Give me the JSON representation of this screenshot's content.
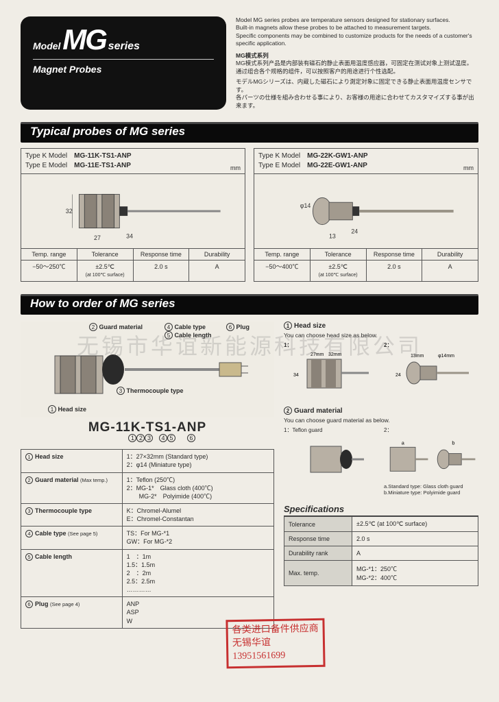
{
  "title": {
    "model": "Model",
    "mg": "MG",
    "series": "series",
    "sub": "Magnet Probes"
  },
  "intro": {
    "en1": "Model MG series probes are temperature sensors designed for stationary surfaces.",
    "en2": "Built-in magnets allow these probes to be attached to measurement targets.",
    "en3": "Specific components may be combined to customize products for the needs of a customer's specific application.",
    "zh_h": "MG模式系列",
    "zh1": "MG模式系列产品是内部装有磁石的静止表面用温度感应器，可固定在测试对象上测试温度。",
    "zh2": "通过组合各个规格的组件，可以按照客户的用途进行个性选配。",
    "jp1": "モデルMGシリーズは、内蔵した磁石により測定対象に固定できる静止表面用温度センサです。",
    "jp2": "各パーツの仕様を組み合わせる事により、お客様の用途に合わせてカスタマイズする事が出来ます。"
  },
  "bar1": "Typical probes of MG series",
  "bar2": "How to order of MG series",
  "probe": [
    {
      "k_label": "Type K  Model",
      "k_model": "MG-11K-TS1-ANP",
      "e_label": "Type E  Model",
      "e_model": "MG-11E-TS1-ANP",
      "mm": "mm",
      "dims": {
        "h": "32",
        "w": "34",
        "d": "27"
      },
      "spec": {
        "h": [
          "Temp. range",
          "Tolerance",
          "Response time",
          "Durability"
        ],
        "v": [
          "−50～250℃",
          "±2.5℃",
          "2.0 s",
          "A"
        ],
        "tol_sub": "(at 100℃ surface)"
      }
    },
    {
      "k_label": "Type K  Model",
      "k_model": "MG-22K-GW1-ANP",
      "e_label": "Type E  Model",
      "e_model": "MG-22E-GW1-ANP",
      "mm": "mm",
      "dims": {
        "h": "24",
        "w": "13",
        "d": "φ14"
      },
      "spec": {
        "h": [
          "Temp. range",
          "Tolerance",
          "Response time",
          "Durability"
        ],
        "v": [
          "−50～400℃",
          "±2.5℃",
          "2.0 s",
          "A"
        ],
        "tol_sub": "(at 100℃ surface)"
      }
    }
  ],
  "callouts": {
    "c1": "Head size",
    "c2": "Guard material",
    "c3": "Thermocouple type",
    "c4": "Cable type",
    "c5": "Cable length",
    "c6": "Plug"
  },
  "order_code": "MG-11K-TS1-ANP",
  "order_tbl": [
    {
      "n": "1",
      "label": "Head size",
      "val": "1：27×32mm (Standard type)\n2：φ14 (Miniature type)"
    },
    {
      "n": "2",
      "label": "Guard material",
      "sub": "(Max temp.)",
      "val": "1：Teflon (250℃)\n2：MG-1*　Glass cloth (400℃)\n　　MG-2*　Polyimide (400℃)"
    },
    {
      "n": "3",
      "label": "Thermocouple type",
      "val": "K：Chromel-Alumel\nE：Chromel-Constantan"
    },
    {
      "n": "4",
      "label": "Cable type",
      "sub": "(See page 5)",
      "val": "TS：For MG-*1\nGW：For MG-*2"
    },
    {
      "n": "5",
      "label": "Cable length",
      "val": "1　：1m\n1.5：1.5m\n2　：2m\n2.5：2.5m\n…………"
    },
    {
      "n": "6",
      "label": "Plug",
      "sub": "(See page 4)",
      "val": "ANP\nASP\nW"
    }
  ],
  "right": {
    "r1_h": "Head size",
    "r1_sub": "You can choose head size as below.",
    "r1_a": "1：",
    "r1_a_dims": "27mm × 32mm / 34mm",
    "r1_b": "2：",
    "r1_b_dims": "13mm × φ14mm / 24mm",
    "r2_h": "Guard material",
    "r2_sub": "You can choose guard material as below.",
    "r2_1": "1：Teflon guard",
    "r2_2": "2：",
    "r2_cap_a": "a.Standard type: Glass cloth guard",
    "r2_cap_b": "b.Miniature type: Polyimide guard",
    "spec_title": "Specifications",
    "spec2": [
      [
        "Tolerance",
        "±2.5℃ (at 100℃ surface)"
      ],
      [
        "Response time",
        "2.0 s"
      ],
      [
        "Durability rank",
        "A"
      ],
      [
        "Max. temp.",
        "MG-*1：250℃\nMG-*2：400℃"
      ]
    ]
  },
  "watermark": "无锡市华谊新能源科技有限公司",
  "stamp": {
    "l1": "各类进口备件供应商",
    "l2": "无锡华谊",
    "l3": "13951561699"
  }
}
